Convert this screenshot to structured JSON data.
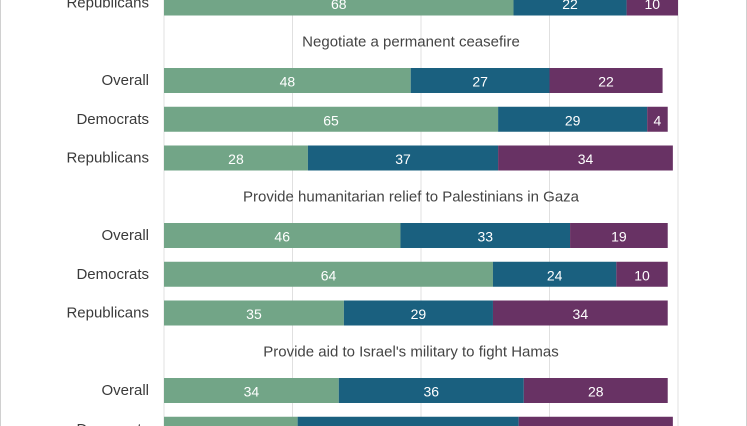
{
  "colors": {
    "series_1": "#72a587",
    "series_2": "#1a607f",
    "series_3": "#683264",
    "grid": "#e0e0e0"
  },
  "chart_data": {
    "type": "bar",
    "orientation": "horizontal",
    "stacked": true,
    "xlim": [
      0,
      100
    ],
    "grid": true,
    "legend": "none",
    "series": [
      {
        "color": "#72a587"
      },
      {
        "color": "#1a607f"
      },
      {
        "color": "#683264"
      }
    ],
    "groups": [
      {
        "title": "",
        "rows": [
          {
            "category": "Republicans",
            "values": [
              68,
              22,
              10
            ]
          }
        ]
      },
      {
        "title": "Negotiate a permanent ceasefire",
        "rows": [
          {
            "category": "Overall",
            "values": [
              48,
              27,
              22
            ]
          },
          {
            "category": "Democrats",
            "values": [
              65,
              29,
              4
            ]
          },
          {
            "category": "Republicans",
            "values": [
              28,
              37,
              34
            ]
          }
        ]
      },
      {
        "title": "Provide humanitarian relief to Palestinians in Gaza",
        "rows": [
          {
            "category": "Overall",
            "values": [
              46,
              33,
              19
            ]
          },
          {
            "category": "Democrats",
            "values": [
              64,
              24,
              10
            ]
          },
          {
            "category": "Republicans",
            "values": [
              35,
              29,
              34
            ]
          }
        ]
      },
      {
        "title": "Provide aid to Israel's military to fight Hamas",
        "rows": [
          {
            "category": "Overall",
            "values": [
              34,
              36,
              28
            ]
          },
          {
            "category": "Democrats",
            "values": [
              26,
              43,
              30
            ]
          }
        ]
      }
    ]
  }
}
